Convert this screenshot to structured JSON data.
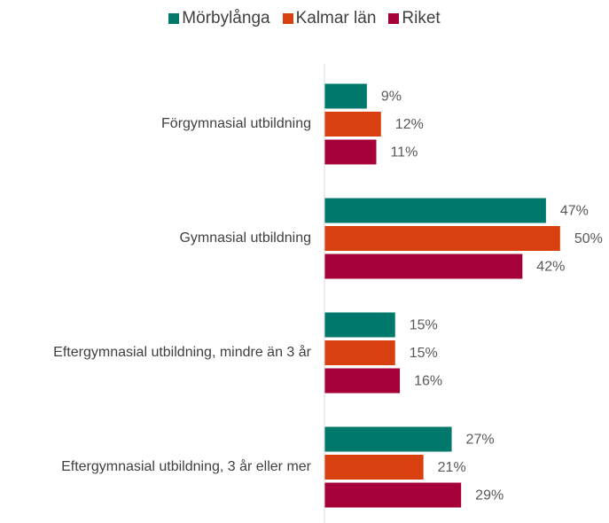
{
  "chart_data": {
    "type": "bar",
    "orientation": "horizontal",
    "categories": [
      "Förgymnasial utbildning",
      "Gymnasial utbildning",
      "Eftergymnasial utbildning, mindre än 3 år",
      "Eftergymnasial utbildning, 3 år eller mer"
    ],
    "series": [
      {
        "name": "Mörbylånga",
        "color": "#00786b",
        "values": [
          9,
          47,
          15,
          27
        ],
        "value_labels": [
          "9%",
          "47%",
          "15%",
          "27%"
        ]
      },
      {
        "name": "Kalmar län",
        "color": "#d9400f",
        "values": [
          12,
          50,
          15,
          21
        ],
        "value_labels": [
          "12%",
          "50%",
          "15%",
          "21%"
        ]
      },
      {
        "name": "Riket",
        "color": "#a6003a",
        "values": [
          11,
          42,
          16,
          29
        ],
        "value_labels": [
          "11%",
          "42%",
          "16%",
          "29%"
        ]
      }
    ],
    "xlim": [
      0,
      60
    ],
    "legend": "top"
  }
}
